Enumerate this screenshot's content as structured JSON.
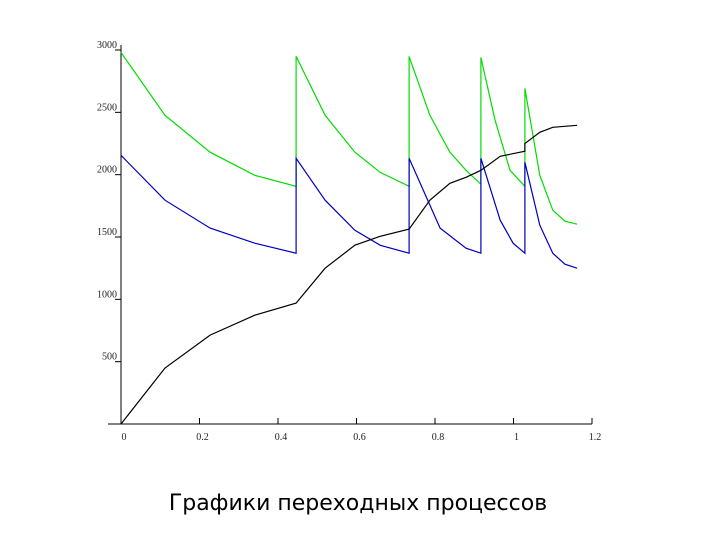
{
  "chart_data": {
    "type": "line",
    "title": "Графики переходных процессов",
    "xlim": [
      0,
      1.2
    ],
    "xticks": [
      0,
      0.2,
      0.4,
      0.6,
      0.8,
      1,
      1.2
    ],
    "ylim": [
      0,
      3000
    ],
    "yticks": [
      500,
      1000,
      1500,
      2000,
      2500,
      3000
    ],
    "series": [
      {
        "color": "#00dd00",
        "x": [
          0,
          0.112,
          0.227,
          0.341,
          0.446,
          0.446,
          0.52,
          0.596,
          0.66,
          0.734,
          0.734,
          0.787,
          0.838,
          0.879,
          0.917,
          0.917,
          0.953,
          0.991,
          1.029,
          1.029,
          1.067,
          1.1,
          1.131,
          1.162
        ],
        "values": [
          2980,
          2476,
          2180,
          1995,
          1907,
          2949,
          2476,
          2180,
          2019,
          1907,
          2949,
          2476,
          2180,
          2035,
          1923,
          2940,
          2436,
          2035,
          1907,
          2692,
          1995,
          1715,
          1627,
          1603
        ]
      },
      {
        "color": "#0000c0",
        "x": [
          0,
          0.112,
          0.227,
          0.341,
          0.446,
          0.446,
          0.52,
          0.596,
          0.66,
          0.734,
          0.734,
          0.813,
          0.879,
          0.917,
          0.917,
          0.966,
          0.999,
          1.029,
          1.029,
          1.067,
          1.1,
          1.131,
          1.162
        ],
        "values": [
          2155,
          1795,
          1571,
          1450,
          1370,
          2131,
          1795,
          1554,
          1434,
          1370,
          2131,
          1571,
          1410,
          1370,
          2131,
          1635,
          1450,
          1370,
          2099,
          1595,
          1370,
          1282,
          1250
        ]
      },
      {
        "color": "#000000",
        "x": [
          0,
          0.112,
          0.227,
          0.341,
          0.446,
          0.52,
          0.596,
          0.66,
          0.734,
          0.787,
          0.838,
          0.879,
          0.917,
          0.966,
          1.029,
          1.029,
          1.067,
          1.1,
          1.162
        ],
        "values": [
          0,
          449,
          713,
          873,
          970,
          1250,
          1434,
          1506,
          1563,
          1795,
          1931,
          1979,
          2035,
          2147,
          2188,
          2250,
          2340,
          2380,
          2396
        ]
      }
    ]
  }
}
